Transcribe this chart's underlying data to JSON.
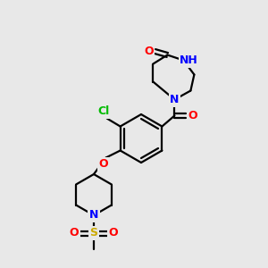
{
  "background_color": "#e8e8e8",
  "bond_color": "#000000",
  "atom_colors": {
    "O": "#ff0000",
    "N": "#0000ff",
    "H": "#008080",
    "Cl": "#00bb00",
    "S": "#ccaa00",
    "C": "#000000"
  },
  "figsize": [
    3.0,
    3.0
  ],
  "dpi": 100
}
